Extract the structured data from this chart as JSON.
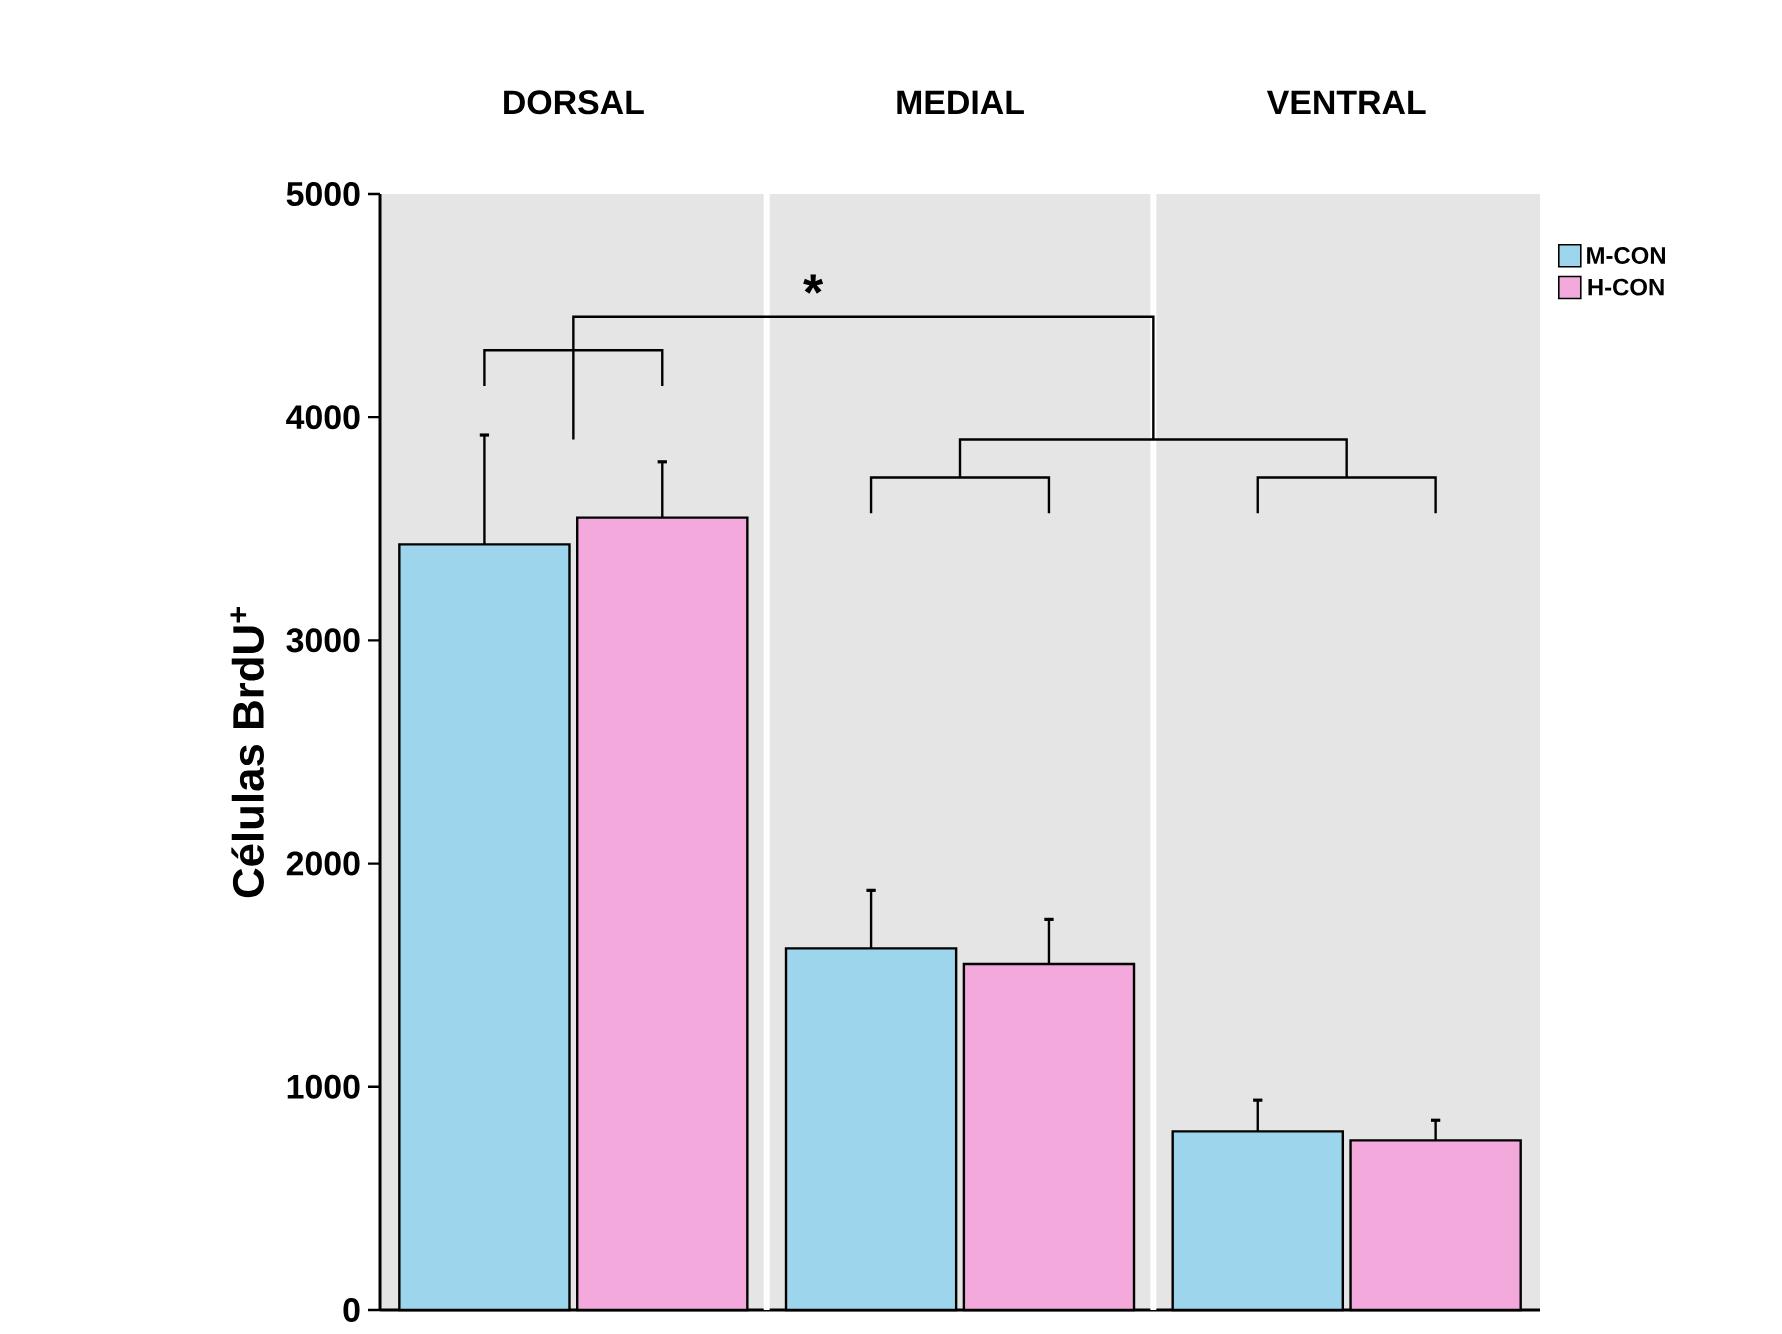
{
  "chart_data": {
    "type": "bar",
    "ylabel": "Células BrdU$^{+}$",
    "categories": [
      "DORSAL",
      "MEDIAL",
      "VENTRAL"
    ],
    "series": [
      {
        "name": "M-CON",
        "color": "#9dd6ec",
        "values": [
          3430,
          1620,
          800
        ],
        "errors": [
          [
            3430,
            3920
          ],
          [
            1620,
            1880
          ],
          [
            800,
            940
          ]
        ]
      },
      {
        "name": "H-CON",
        "color": "#f4a9dd",
        "values": [
          3550,
          1550,
          760
        ],
        "errors": [
          [
            3550,
            3800
          ],
          [
            1550,
            1750
          ],
          [
            760,
            850
          ]
        ]
      }
    ],
    "ylim": [
      0,
      5000
    ],
    "yticks": [
      0,
      1000,
      2000,
      3000,
      4000,
      5000
    ],
    "grid": false,
    "legend": "top right",
    "annotations": [
      "*"
    ]
  }
}
